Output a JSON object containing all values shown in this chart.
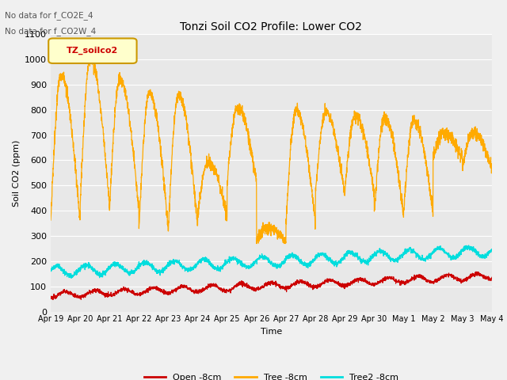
{
  "title": "Tonzi Soil CO2 Profile: Lower CO2",
  "xlabel": "Time",
  "ylabel": "Soil CO2 (ppm)",
  "annotations": [
    "No data for f_CO2E_4",
    "No data for f_CO2W_4"
  ],
  "legend_label": "TZ_soilco2",
  "ylim": [
    0,
    1100
  ],
  "yticks": [
    0,
    100,
    200,
    300,
    400,
    500,
    600,
    700,
    800,
    900,
    1000,
    1100
  ],
  "xtick_labels": [
    "Apr 19",
    "Apr 20",
    "Apr 21",
    "Apr 22",
    "Apr 23",
    "Apr 24",
    "Apr 25",
    "Apr 26",
    "Apr 27",
    "Apr 28",
    "Apr 29",
    "Apr 30",
    "May 1",
    "May 2",
    "May 3",
    "May 4"
  ],
  "series": {
    "open": {
      "label": "Open -8cm",
      "color": "#cc0000"
    },
    "tree": {
      "label": "Tree -8cm",
      "color": "#ffaa00"
    },
    "tree2": {
      "label": "Tree2 -8cm",
      "color": "#00dddd"
    }
  },
  "plot_bg": "#e8e8e8",
  "grid_color": "#ffffff",
  "annotation_color": "#555555",
  "box_facecolor": "#ffffcc",
  "box_edgecolor": "#cc9900",
  "box_textcolor": "#cc0000"
}
